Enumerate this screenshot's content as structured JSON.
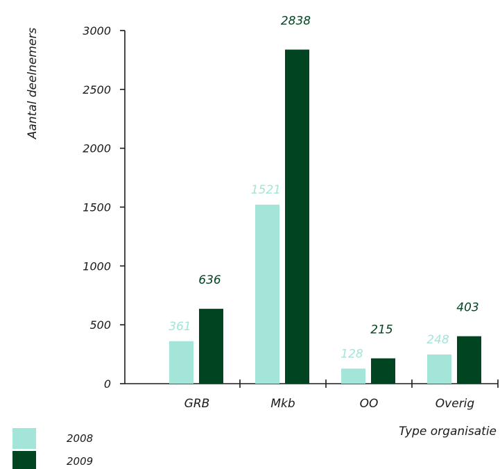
{
  "chart_data": {
    "type": "bar",
    "ylabel": "Aantal deelnemers",
    "xlabel": "Type organisatie",
    "categories": [
      "GRB",
      "Mkb",
      "OO",
      "Overig"
    ],
    "series": [
      {
        "name": "2008",
        "values": [
          361,
          1521,
          128,
          248
        ],
        "color": "#a3e5d8"
      },
      {
        "name": "2009",
        "values": [
          636,
          2838,
          215,
          403
        ],
        "color": "#004422"
      }
    ],
    "ylim": [
      0,
      3000
    ],
    "yticks": [
      0,
      500,
      1000,
      1500,
      2000,
      2500,
      3000
    ],
    "ytick_labels": [
      "0",
      "500",
      "1000",
      "1500",
      "2000",
      "2500",
      "3000"
    ],
    "grid": false,
    "legend_position": "bottom-left",
    "data_labels": true
  }
}
